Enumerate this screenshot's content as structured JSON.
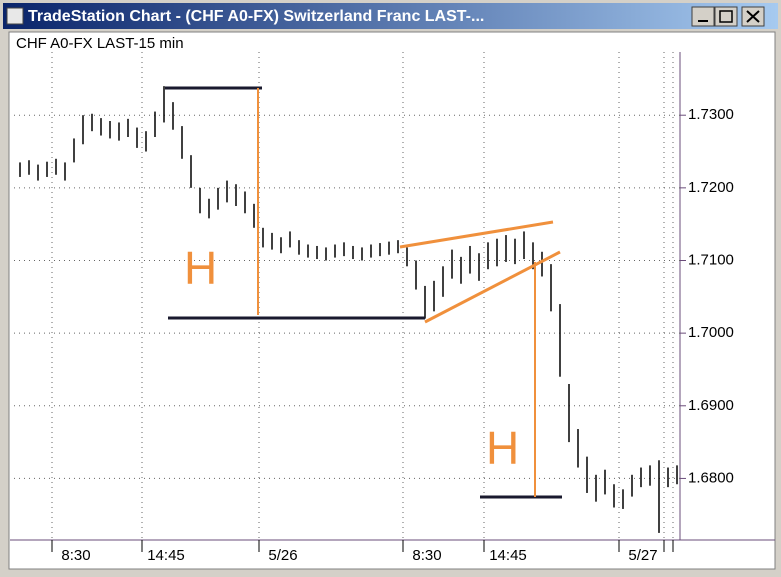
{
  "window": {
    "title": "TradeStation Chart - (CHF A0-FX) Switzerland Franc LAST-..."
  },
  "chart_data": {
    "type": "range_bar",
    "title": "CHF A0-FX LAST-15 min",
    "annotations": [
      "H",
      "H"
    ],
    "categories": [
      null,
      null,
      null,
      null,
      "8:30",
      null,
      null,
      null,
      null,
      null,
      null,
      null,
      null,
      null,
      "14:45",
      null,
      null,
      null,
      null,
      null,
      null,
      null,
      null,
      null,
      null,
      null,
      null,
      "5/26",
      null,
      null,
      null,
      null,
      null,
      null,
      null,
      null,
      null,
      null,
      null,
      null,
      null,
      null,
      null,
      "8:30",
      null,
      null,
      null,
      null,
      null,
      null,
      null,
      null,
      "14:45",
      null,
      null,
      null,
      null,
      null,
      null,
      null,
      null,
      null,
      null,
      null,
      null,
      null,
      null,
      "5/27",
      null,
      null,
      null,
      null
    ],
    "values": [
      [
        1.7215,
        1.7235
      ],
      [
        1.7218,
        1.7238
      ],
      [
        1.721,
        1.7232
      ],
      [
        1.7215,
        1.7236
      ],
      [
        1.7218,
        1.724
      ],
      [
        1.721,
        1.7235
      ],
      [
        1.7235,
        1.7268
      ],
      [
        1.726,
        1.73
      ],
      [
        1.7278,
        1.7302
      ],
      [
        1.7272,
        1.7296
      ],
      [
        1.7268,
        1.7292
      ],
      [
        1.7265,
        1.729
      ],
      [
        1.727,
        1.7295
      ],
      [
        1.7255,
        1.7283
      ],
      [
        1.725,
        1.7278
      ],
      [
        1.727,
        1.7305
      ],
      [
        1.729,
        1.734
      ],
      [
        1.728,
        1.7318
      ],
      [
        1.724,
        1.7285
      ],
      [
        1.72,
        1.7245
      ],
      [
        1.7165,
        1.72
      ],
      [
        1.7158,
        1.7185
      ],
      [
        1.717,
        1.72
      ],
      [
        1.718,
        1.721
      ],
      [
        1.7175,
        1.7205
      ],
      [
        1.7165,
        1.7195
      ],
      [
        1.7145,
        1.7178
      ],
      [
        1.7118,
        1.7145
      ],
      [
        1.7115,
        1.7138
      ],
      [
        1.711,
        1.7132
      ],
      [
        1.7118,
        1.714
      ],
      [
        1.7108,
        1.7128
      ],
      [
        1.7104,
        1.7122
      ],
      [
        1.7102,
        1.712
      ],
      [
        1.71,
        1.7118
      ],
      [
        1.7104,
        1.7122
      ],
      [
        1.7106,
        1.7125
      ],
      [
        1.7102,
        1.712
      ],
      [
        1.71,
        1.7118
      ],
      [
        1.7104,
        1.7122
      ],
      [
        1.7106,
        1.7124
      ],
      [
        1.7108,
        1.7126
      ],
      [
        1.711,
        1.7128
      ],
      [
        1.7092,
        1.7118
      ],
      [
        1.706,
        1.71
      ],
      [
        1.702,
        1.7065
      ],
      [
        1.703,
        1.7072
      ],
      [
        1.705,
        1.7092
      ],
      [
        1.7075,
        1.7115
      ],
      [
        1.7068,
        1.7105
      ],
      [
        1.7082,
        1.712
      ],
      [
        1.7072,
        1.711
      ],
      [
        1.7088,
        1.7125
      ],
      [
        1.7092,
        1.713
      ],
      [
        1.7098,
        1.7135
      ],
      [
        1.7095,
        1.713
      ],
      [
        1.7102,
        1.714
      ],
      [
        1.7088,
        1.7125
      ],
      [
        1.7078,
        1.7112
      ],
      [
        1.703,
        1.7095
      ],
      [
        1.694,
        1.704
      ],
      [
        1.685,
        1.693
      ],
      [
        1.6815,
        1.6868
      ],
      [
        1.678,
        1.683
      ],
      [
        1.6768,
        1.6805
      ],
      [
        1.6778,
        1.6812
      ],
      [
        1.676,
        1.6792
      ],
      [
        1.6758,
        1.6785
      ],
      [
        1.6775,
        1.6805
      ],
      [
        1.6788,
        1.6815
      ],
      [
        1.679,
        1.6818
      ],
      [
        1.6725,
        1.6825
      ],
      [
        1.6788,
        1.6815
      ],
      [
        1.6792,
        1.6818
      ]
    ],
    "color": "#000000",
    "ylim": [
      1.6718,
      1.7387
    ],
    "yticks": [
      {
        "value": 1.73,
        "label": "1.7300"
      },
      {
        "value": 1.72,
        "label": "1.7200"
      },
      {
        "value": 1.71,
        "label": "1.7100"
      },
      {
        "value": 1.7,
        "label": "1.7000"
      },
      {
        "value": 1.69,
        "label": "1.6900"
      },
      {
        "value": 1.68,
        "label": "1.6800"
      }
    ],
    "grid": true
  }
}
